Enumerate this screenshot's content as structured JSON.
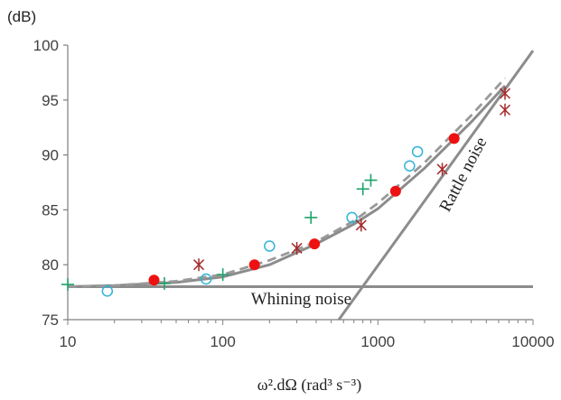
{
  "chart_data": {
    "type": "scatter",
    "title": "",
    "ylabel": "(dB)",
    "xlabel": "ω².dΩ (rad³ s⁻³)",
    "xscale": "log",
    "xlim": [
      10,
      10000
    ],
    "ylim": [
      75,
      100
    ],
    "xticks": [
      10,
      100,
      1000,
      10000
    ],
    "xtick_labels": [
      "10",
      "100",
      "1000",
      "10000"
    ],
    "yticks": [
      75,
      80,
      85,
      90,
      95,
      100
    ],
    "ytick_labels": [
      "75",
      "80",
      "85",
      "90",
      "95",
      "100"
    ],
    "grid": false,
    "legend": "none",
    "colors": {
      "red_dots": "#ee1111",
      "blue_circles": "#2fb4d6",
      "green_plus": "#1fa36a",
      "asterisk": "#a52a2a",
      "lines": "#8c8c8c"
    },
    "series": [
      {
        "marker": "filled-circle",
        "color": "#ee1111",
        "x": [
          36,
          160,
          390,
          1300,
          3100
        ],
        "y": [
          78.6,
          80.0,
          81.9,
          86.7,
          91.5
        ]
      },
      {
        "marker": "open-circle",
        "color": "#2fb4d6",
        "x": [
          18,
          78,
          200,
          680,
          1600,
          1800
        ],
        "y": [
          77.6,
          78.7,
          81.7,
          84.3,
          89.0,
          90.3
        ]
      },
      {
        "marker": "plus",
        "color": "#1fa36a",
        "x": [
          10,
          42,
          100,
          370,
          800,
          900
        ],
        "y": [
          78.2,
          78.3,
          79.1,
          84.3,
          86.9,
          87.7
        ]
      },
      {
        "marker": "asterisk",
        "color": "#a52a2a",
        "x": [
          70,
          300,
          780,
          2600,
          6600,
          6600
        ],
        "y": [
          80.0,
          81.5,
          83.6,
          88.7,
          95.6,
          94.1
        ]
      }
    ],
    "lines": [
      {
        "style": "solid",
        "color": "#8c8c8c",
        "x": [
          10,
          10000
        ],
        "y": [
          78.0,
          78.0
        ]
      },
      {
        "style": "solid",
        "color": "#8c8c8c",
        "x": [
          560,
          10000
        ],
        "y": [
          75,
          99.5
        ]
      },
      {
        "style": "solid",
        "color": "#8c8c8c",
        "x": [
          10,
          20,
          50,
          100,
          200,
          400,
          700,
          1000,
          2000,
          4000,
          6600
        ],
        "y": [
          78.0,
          78.1,
          78.4,
          78.9,
          80.0,
          81.9,
          83.7,
          85.1,
          88.8,
          93.0,
          96.3
        ]
      },
      {
        "style": "dashed",
        "color": "#8c8c8c",
        "x": [
          10,
          20,
          50,
          100,
          200,
          400,
          700,
          1000,
          2000,
          4000,
          6600
        ],
        "y": [
          78.0,
          78.1,
          78.5,
          79.1,
          80.4,
          82.1,
          84.0,
          85.6,
          89.3,
          93.6,
          97.0
        ]
      }
    ],
    "annotations": [
      {
        "text": "Whining noise",
        "x": 320,
        "y": 76.4
      },
      {
        "text": "Rattle noise",
        "x": 3800,
        "y": 88,
        "rotation": -62
      }
    ]
  }
}
